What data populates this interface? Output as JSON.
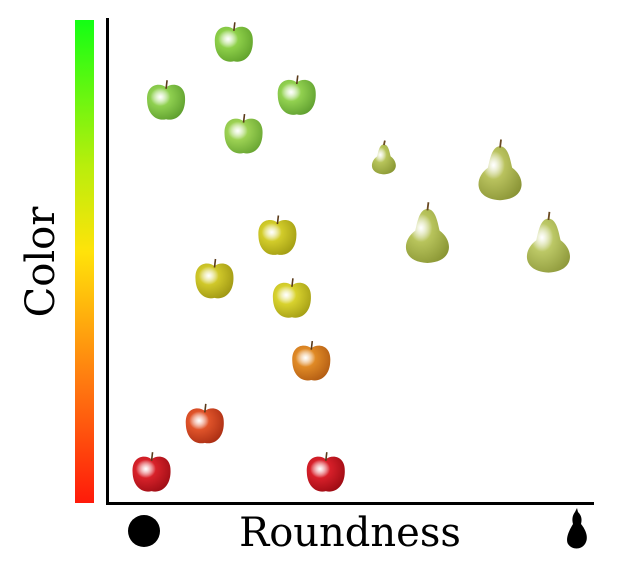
{
  "y_axis": {
    "label": "Color",
    "gradient": [
      "#ff1a0a",
      "#ff7a10",
      "#ffe30a",
      "#b8ee0c",
      "#13ff14"
    ]
  },
  "x_axis": {
    "label": "Roundness",
    "left_icon": "round-icon",
    "right_icon": "pear-shape-icon"
  },
  "items": [
    {
      "kind": "apple",
      "color": "#8ed04a",
      "shade": "#5fa02a",
      "roundness": 0.26,
      "color_level": 0.95
    },
    {
      "kind": "apple",
      "color": "#8fd050",
      "shade": "#5c9c2c",
      "roundness": 0.12,
      "color_level": 0.83
    },
    {
      "kind": "apple",
      "color": "#92d150",
      "shade": "#5d9d2e",
      "roundness": 0.39,
      "color_level": 0.84
    },
    {
      "kind": "apple",
      "color": "#9dd254",
      "shade": "#66a330",
      "roundness": 0.28,
      "color_level": 0.76
    },
    {
      "kind": "pear",
      "color": "#b7c45a",
      "shade": "#8a9834",
      "roundness": 0.57,
      "color_level": 0.71
    },
    {
      "kind": "pear",
      "color": "#b9c25e",
      "shade": "#8a9436",
      "roundness": 0.81,
      "color_level": 0.68
    },
    {
      "kind": "pear",
      "color": "#b8c45c",
      "shade": "#8a9634",
      "roundness": 0.66,
      "color_level": 0.55
    },
    {
      "kind": "pear",
      "color": "#bcc866",
      "shade": "#8f9a3c",
      "roundness": 0.91,
      "color_level": 0.53
    },
    {
      "kind": "apple",
      "color": "#d2cc2a",
      "shade": "#a09b12",
      "roundness": 0.35,
      "color_level": 0.55
    },
    {
      "kind": "apple",
      "color": "#d0c82a",
      "shade": "#9c9412",
      "roundness": 0.22,
      "color_level": 0.46
    },
    {
      "kind": "apple",
      "color": "#d8d22e",
      "shade": "#a29c14",
      "roundness": 0.38,
      "color_level": 0.42
    },
    {
      "kind": "apple",
      "color": "#e08a26",
      "shade": "#b05a12",
      "roundness": 0.42,
      "color_level": 0.29
    },
    {
      "kind": "apple",
      "color": "#e0542a",
      "shade": "#a82c12",
      "roundness": 0.2,
      "color_level": 0.16
    },
    {
      "kind": "apple",
      "color": "#d8222a",
      "shade": "#9c0c14",
      "roundness": 0.09,
      "color_level": 0.06
    },
    {
      "kind": "apple",
      "color": "#d8202a",
      "shade": "#9a0a12",
      "roundness": 0.45,
      "color_level": 0.06
    }
  ]
}
